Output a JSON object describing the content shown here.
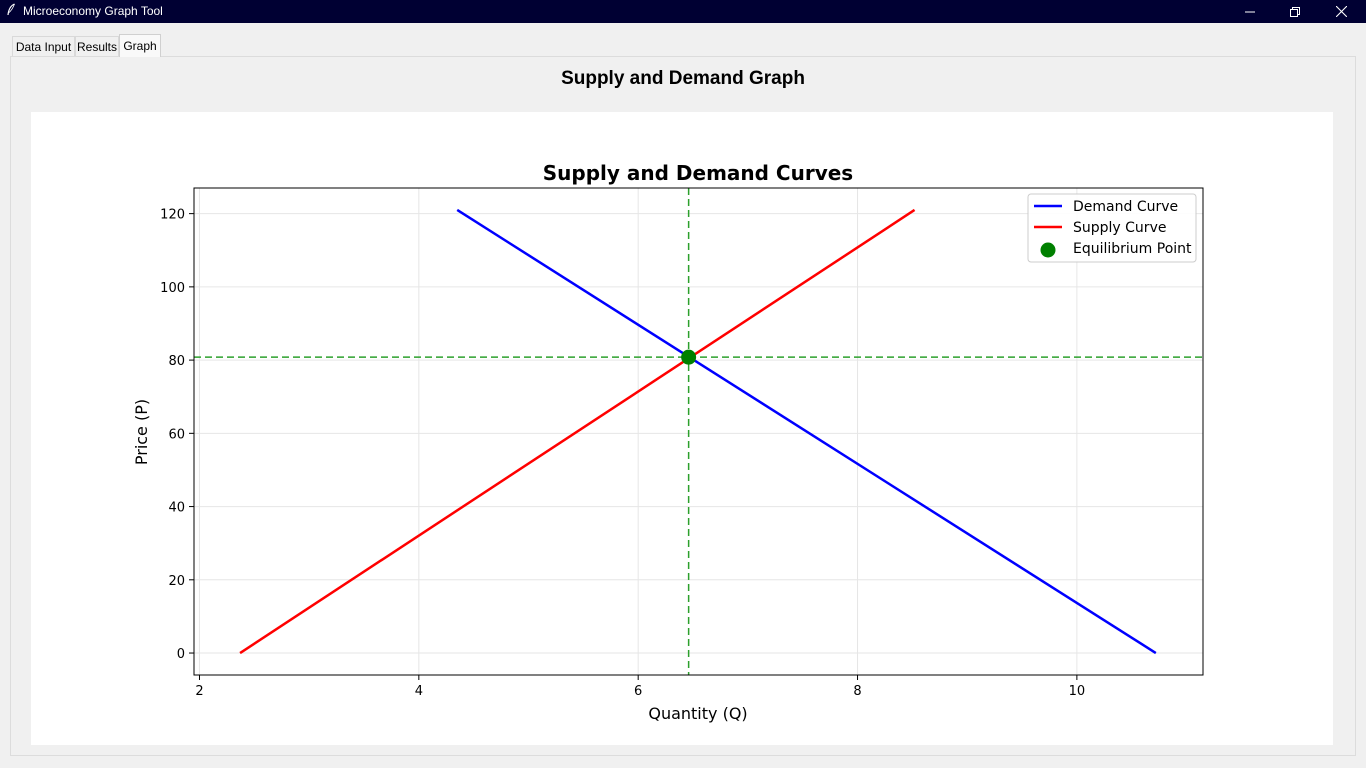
{
  "window": {
    "title": "Microeconomy Graph Tool",
    "app_icon": "feather-icon",
    "controls": [
      "minimize-icon",
      "maximize-icon",
      "close-icon"
    ]
  },
  "tabs": [
    {
      "label": "Data Input",
      "active": false
    },
    {
      "label": "Results",
      "active": false
    },
    {
      "label": "Graph",
      "active": true
    }
  ],
  "page": {
    "heading": "Supply and Demand Graph"
  },
  "colors": {
    "demand": "#0000ff",
    "supply": "#ff0000",
    "equilibrium": "#008000",
    "guide": "#2ca02c",
    "titlebar": "#000033"
  },
  "chart_data": {
    "type": "line",
    "title": "Supply and Demand Curves",
    "xlabel": "Quantity (Q)",
    "ylabel": "Price (P)",
    "xlim": [
      1.95,
      11.15
    ],
    "ylim": [
      -6,
      127
    ],
    "xticks": [
      2,
      4,
      6,
      8,
      10
    ],
    "yticks": [
      0,
      20,
      40,
      60,
      80,
      100,
      120
    ],
    "grid": true,
    "legend_position": "top-right",
    "series": [
      {
        "name": "Demand Curve",
        "color": "#0000ff",
        "points": [
          [
            4.35,
            121
          ],
          [
            10.72,
            0
          ]
        ]
      },
      {
        "name": "Supply Curve",
        "color": "#ff0000",
        "points": [
          [
            2.37,
            0
          ],
          [
            8.52,
            121
          ]
        ]
      }
    ],
    "equilibrium": {
      "name": "Equilibrium Point",
      "x": 6.46,
      "y": 80.8,
      "color": "#008000"
    }
  }
}
